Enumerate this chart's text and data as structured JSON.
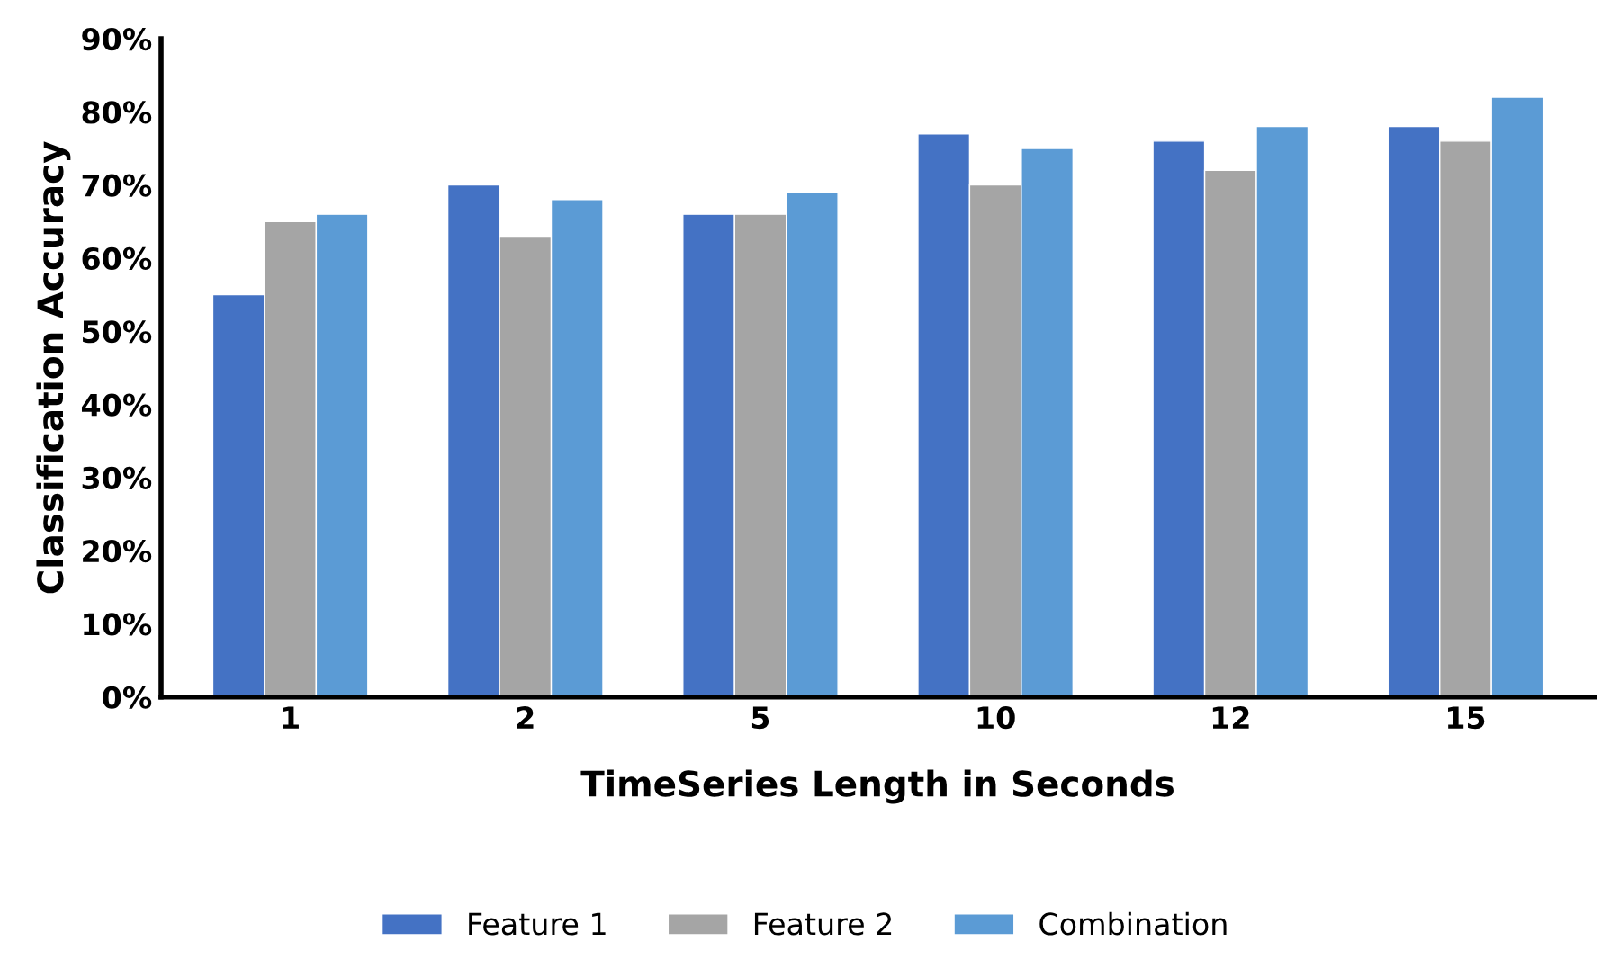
{
  "chart_data": {
    "type": "bar",
    "xlabel": "TimeSeries Length in Seconds",
    "ylabel": "Classification Accuracy",
    "categories": [
      "1",
      "2",
      "5",
      "10",
      "12",
      "15"
    ],
    "series": [
      {
        "name": "Feature 1",
        "color": "#4472c4",
        "values": [
          55,
          70,
          66,
          77,
          76,
          78
        ]
      },
      {
        "name": "Feature 2",
        "color": "#a5a5a5",
        "values": [
          65,
          63,
          66,
          70,
          72,
          76
        ]
      },
      {
        "name": "Combination",
        "color": "#5b9bd5",
        "values": [
          66,
          68,
          69,
          75,
          78,
          82
        ]
      }
    ],
    "ylim": [
      0,
      90
    ],
    "yticks": [
      {
        "value": 0,
        "label": "0%"
      },
      {
        "value": 10,
        "label": "10%"
      },
      {
        "value": 20,
        "label": "20%"
      },
      {
        "value": 30,
        "label": "30%"
      },
      {
        "value": 40,
        "label": "40%"
      },
      {
        "value": 50,
        "label": "50%"
      },
      {
        "value": 60,
        "label": "60%"
      },
      {
        "value": 70,
        "label": "70%"
      },
      {
        "value": 80,
        "label": "80%"
      },
      {
        "value": 90,
        "label": "90%"
      }
    ],
    "grid": false,
    "legend": "bottom"
  }
}
